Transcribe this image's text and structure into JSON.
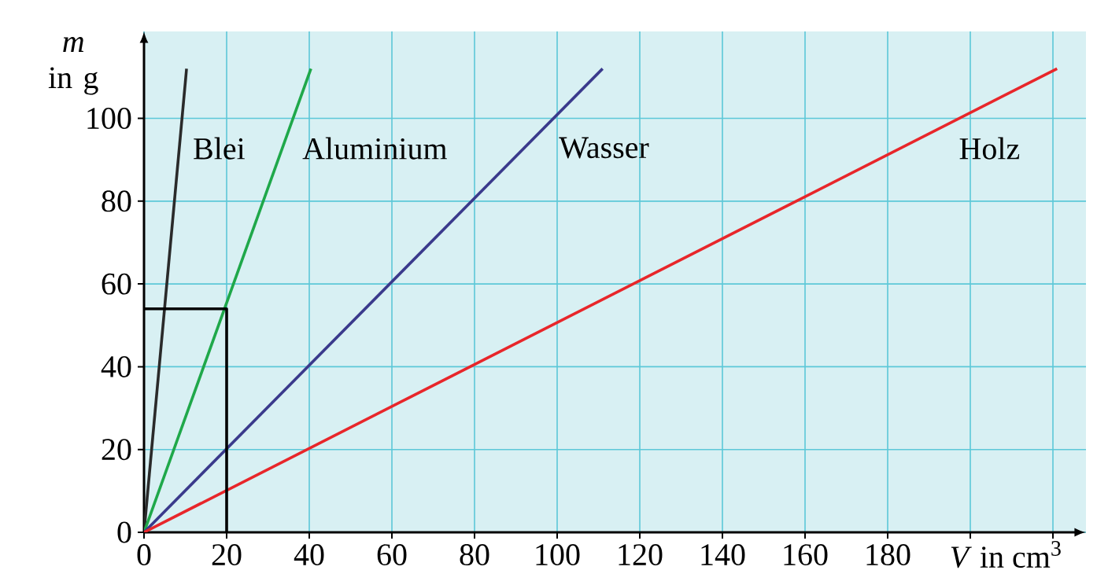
{
  "chart_data": {
    "type": "line",
    "xlabel": "*V* in cm$^{3}$",
    "ylabel": "*m* in g",
    "xlim": [
      0,
      228
    ],
    "ylim": [
      0,
      121
    ],
    "xticks": [
      0,
      20,
      40,
      60,
      80,
      100,
      120,
      140,
      160,
      180,
      {
        "value": 200,
        "label": null
      },
      {
        "value": 220,
        "label": null
      }
    ],
    "yticks": [
      0,
      20,
      40,
      60,
      80,
      100
    ],
    "grid": true,
    "series": [
      {
        "name": "Blei",
        "color": "#2a2a2a",
        "x": [
          0,
          10.3
        ],
        "values": [
          0,
          112
        ]
      },
      {
        "name": "Aluminium",
        "color": "#1fa84a",
        "x": [
          0,
          40.4
        ],
        "values": [
          0,
          112
        ]
      },
      {
        "name": "Wasser",
        "color": "#3a3a8c",
        "x": [
          0,
          111
        ],
        "values": [
          0,
          112
        ]
      },
      {
        "name": "Holz",
        "color": "#e8262a",
        "x": [
          0,
          221
        ],
        "values": [
          0,
          112
        ]
      },
      {
        "color": "#000000",
        "x": [
          0,
          20,
          20
        ],
        "values": [
          54,
          54,
          0
        ]
      }
    ]
  }
}
